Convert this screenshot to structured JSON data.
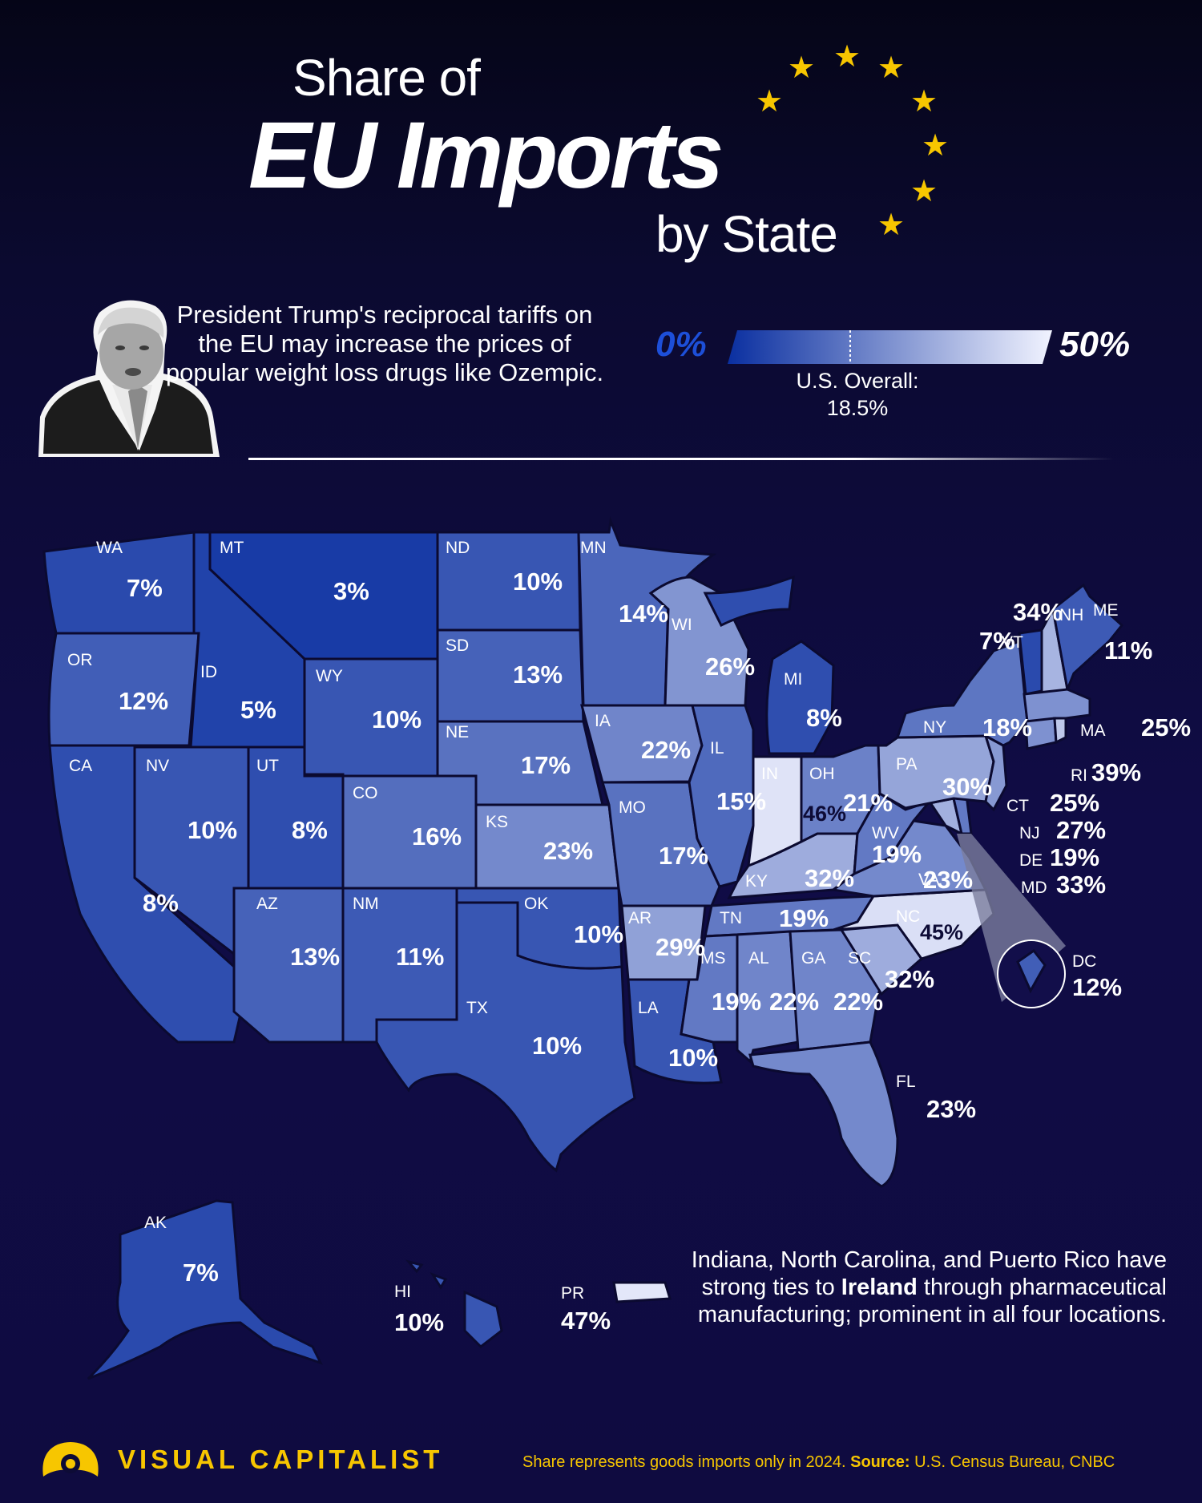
{
  "title": {
    "line1": "Share of",
    "line2": "EU Imports",
    "line3": "by State"
  },
  "intro_text": "President Trump's reciprocal tariffs on the EU may increase the prices of popular weight loss drugs like Ozempic.",
  "legend": {
    "min_label": "0%",
    "max_label": "50%",
    "min": 0,
    "max": 50,
    "overall_label": "U.S. Overall:",
    "overall_value": "18.5%",
    "overall_num": 18.5
  },
  "colors": {
    "low": "#0a2fa0",
    "high": "#f1f3ff",
    "star": "#f7c600",
    "background": "#100c46"
  },
  "states": [
    {
      "abbr": "WA",
      "value": 7,
      "label": "7%"
    },
    {
      "abbr": "OR",
      "value": 12,
      "label": "12%"
    },
    {
      "abbr": "CA",
      "value": 8,
      "label": "8%"
    },
    {
      "abbr": "ID",
      "value": 5,
      "label": "5%"
    },
    {
      "abbr": "NV",
      "value": 10,
      "label": "10%"
    },
    {
      "abbr": "MT",
      "value": 3,
      "label": "3%"
    },
    {
      "abbr": "WY",
      "value": 10,
      "label": "10%"
    },
    {
      "abbr": "UT",
      "value": 8,
      "label": "8%"
    },
    {
      "abbr": "AZ",
      "value": 13,
      "label": "13%"
    },
    {
      "abbr": "CO",
      "value": 16,
      "label": "16%"
    },
    {
      "abbr": "NM",
      "value": 11,
      "label": "11%"
    },
    {
      "abbr": "ND",
      "value": 10,
      "label": "10%"
    },
    {
      "abbr": "SD",
      "value": 13,
      "label": "13%"
    },
    {
      "abbr": "NE",
      "value": 17,
      "label": "17%"
    },
    {
      "abbr": "KS",
      "value": 23,
      "label": "23%"
    },
    {
      "abbr": "OK",
      "value": 10,
      "label": "10%"
    },
    {
      "abbr": "TX",
      "value": 10,
      "label": "10%"
    },
    {
      "abbr": "MN",
      "value": 14,
      "label": "14%"
    },
    {
      "abbr": "IA",
      "value": 22,
      "label": "22%"
    },
    {
      "abbr": "MO",
      "value": 17,
      "label": "17%"
    },
    {
      "abbr": "AR",
      "value": 29,
      "label": "29%"
    },
    {
      "abbr": "LA",
      "value": 10,
      "label": "10%"
    },
    {
      "abbr": "WI",
      "value": 26,
      "label": "26%"
    },
    {
      "abbr": "IL",
      "value": 15,
      "label": "15%"
    },
    {
      "abbr": "MI",
      "value": 8,
      "label": "8%"
    },
    {
      "abbr": "IN",
      "value": 46,
      "label": "46%"
    },
    {
      "abbr": "OH",
      "value": 21,
      "label": "21%"
    },
    {
      "abbr": "KY",
      "value": 32,
      "label": "32%"
    },
    {
      "abbr": "TN",
      "value": 19,
      "label": "19%"
    },
    {
      "abbr": "MS",
      "value": 19,
      "label": "19%"
    },
    {
      "abbr": "AL",
      "value": 22,
      "label": "22%"
    },
    {
      "abbr": "GA",
      "value": 22,
      "label": "22%"
    },
    {
      "abbr": "FL",
      "value": 23,
      "label": "23%"
    },
    {
      "abbr": "SC",
      "value": 32,
      "label": "32%"
    },
    {
      "abbr": "NC",
      "value": 45,
      "label": "45%"
    },
    {
      "abbr": "VA",
      "value": 23,
      "label": "23%"
    },
    {
      "abbr": "WV",
      "value": 19,
      "label": "19%"
    },
    {
      "abbr": "PA",
      "value": 30,
      "label": "30%"
    },
    {
      "abbr": "NY",
      "value": 18,
      "label": "18%"
    },
    {
      "abbr": "VT",
      "value": 7,
      "label": "7%"
    },
    {
      "abbr": "NH",
      "value": 34,
      "label": "34%"
    },
    {
      "abbr": "ME",
      "value": 11,
      "label": "11%"
    },
    {
      "abbr": "MA",
      "value": 25,
      "label": "25%"
    },
    {
      "abbr": "RI",
      "value": 39,
      "label": "39%"
    },
    {
      "abbr": "CT",
      "value": 25,
      "label": "25%"
    },
    {
      "abbr": "NJ",
      "value": 27,
      "label": "27%"
    },
    {
      "abbr": "DE",
      "value": 19,
      "label": "19%"
    },
    {
      "abbr": "MD",
      "value": 33,
      "label": "33%"
    },
    {
      "abbr": "DC",
      "value": 12,
      "label": "12%"
    },
    {
      "abbr": "AK",
      "value": 7,
      "label": "7%"
    },
    {
      "abbr": "HI",
      "value": 10,
      "label": "10%"
    },
    {
      "abbr": "PR",
      "value": 47,
      "label": "47%"
    }
  ],
  "note": {
    "before": "Indiana, North Carolina, and Puerto Rico have strong ties to ",
    "bold": "Ireland",
    "after": " through pharmaceutical manufacturing; prominent in all four locations."
  },
  "footer": {
    "brand": "VISUAL CAPITALIST",
    "source_prefix": "Share represents goods imports only in 2024. ",
    "source_label": "Source:",
    "source_text": " U.S. Census Bureau, CNBC"
  }
}
